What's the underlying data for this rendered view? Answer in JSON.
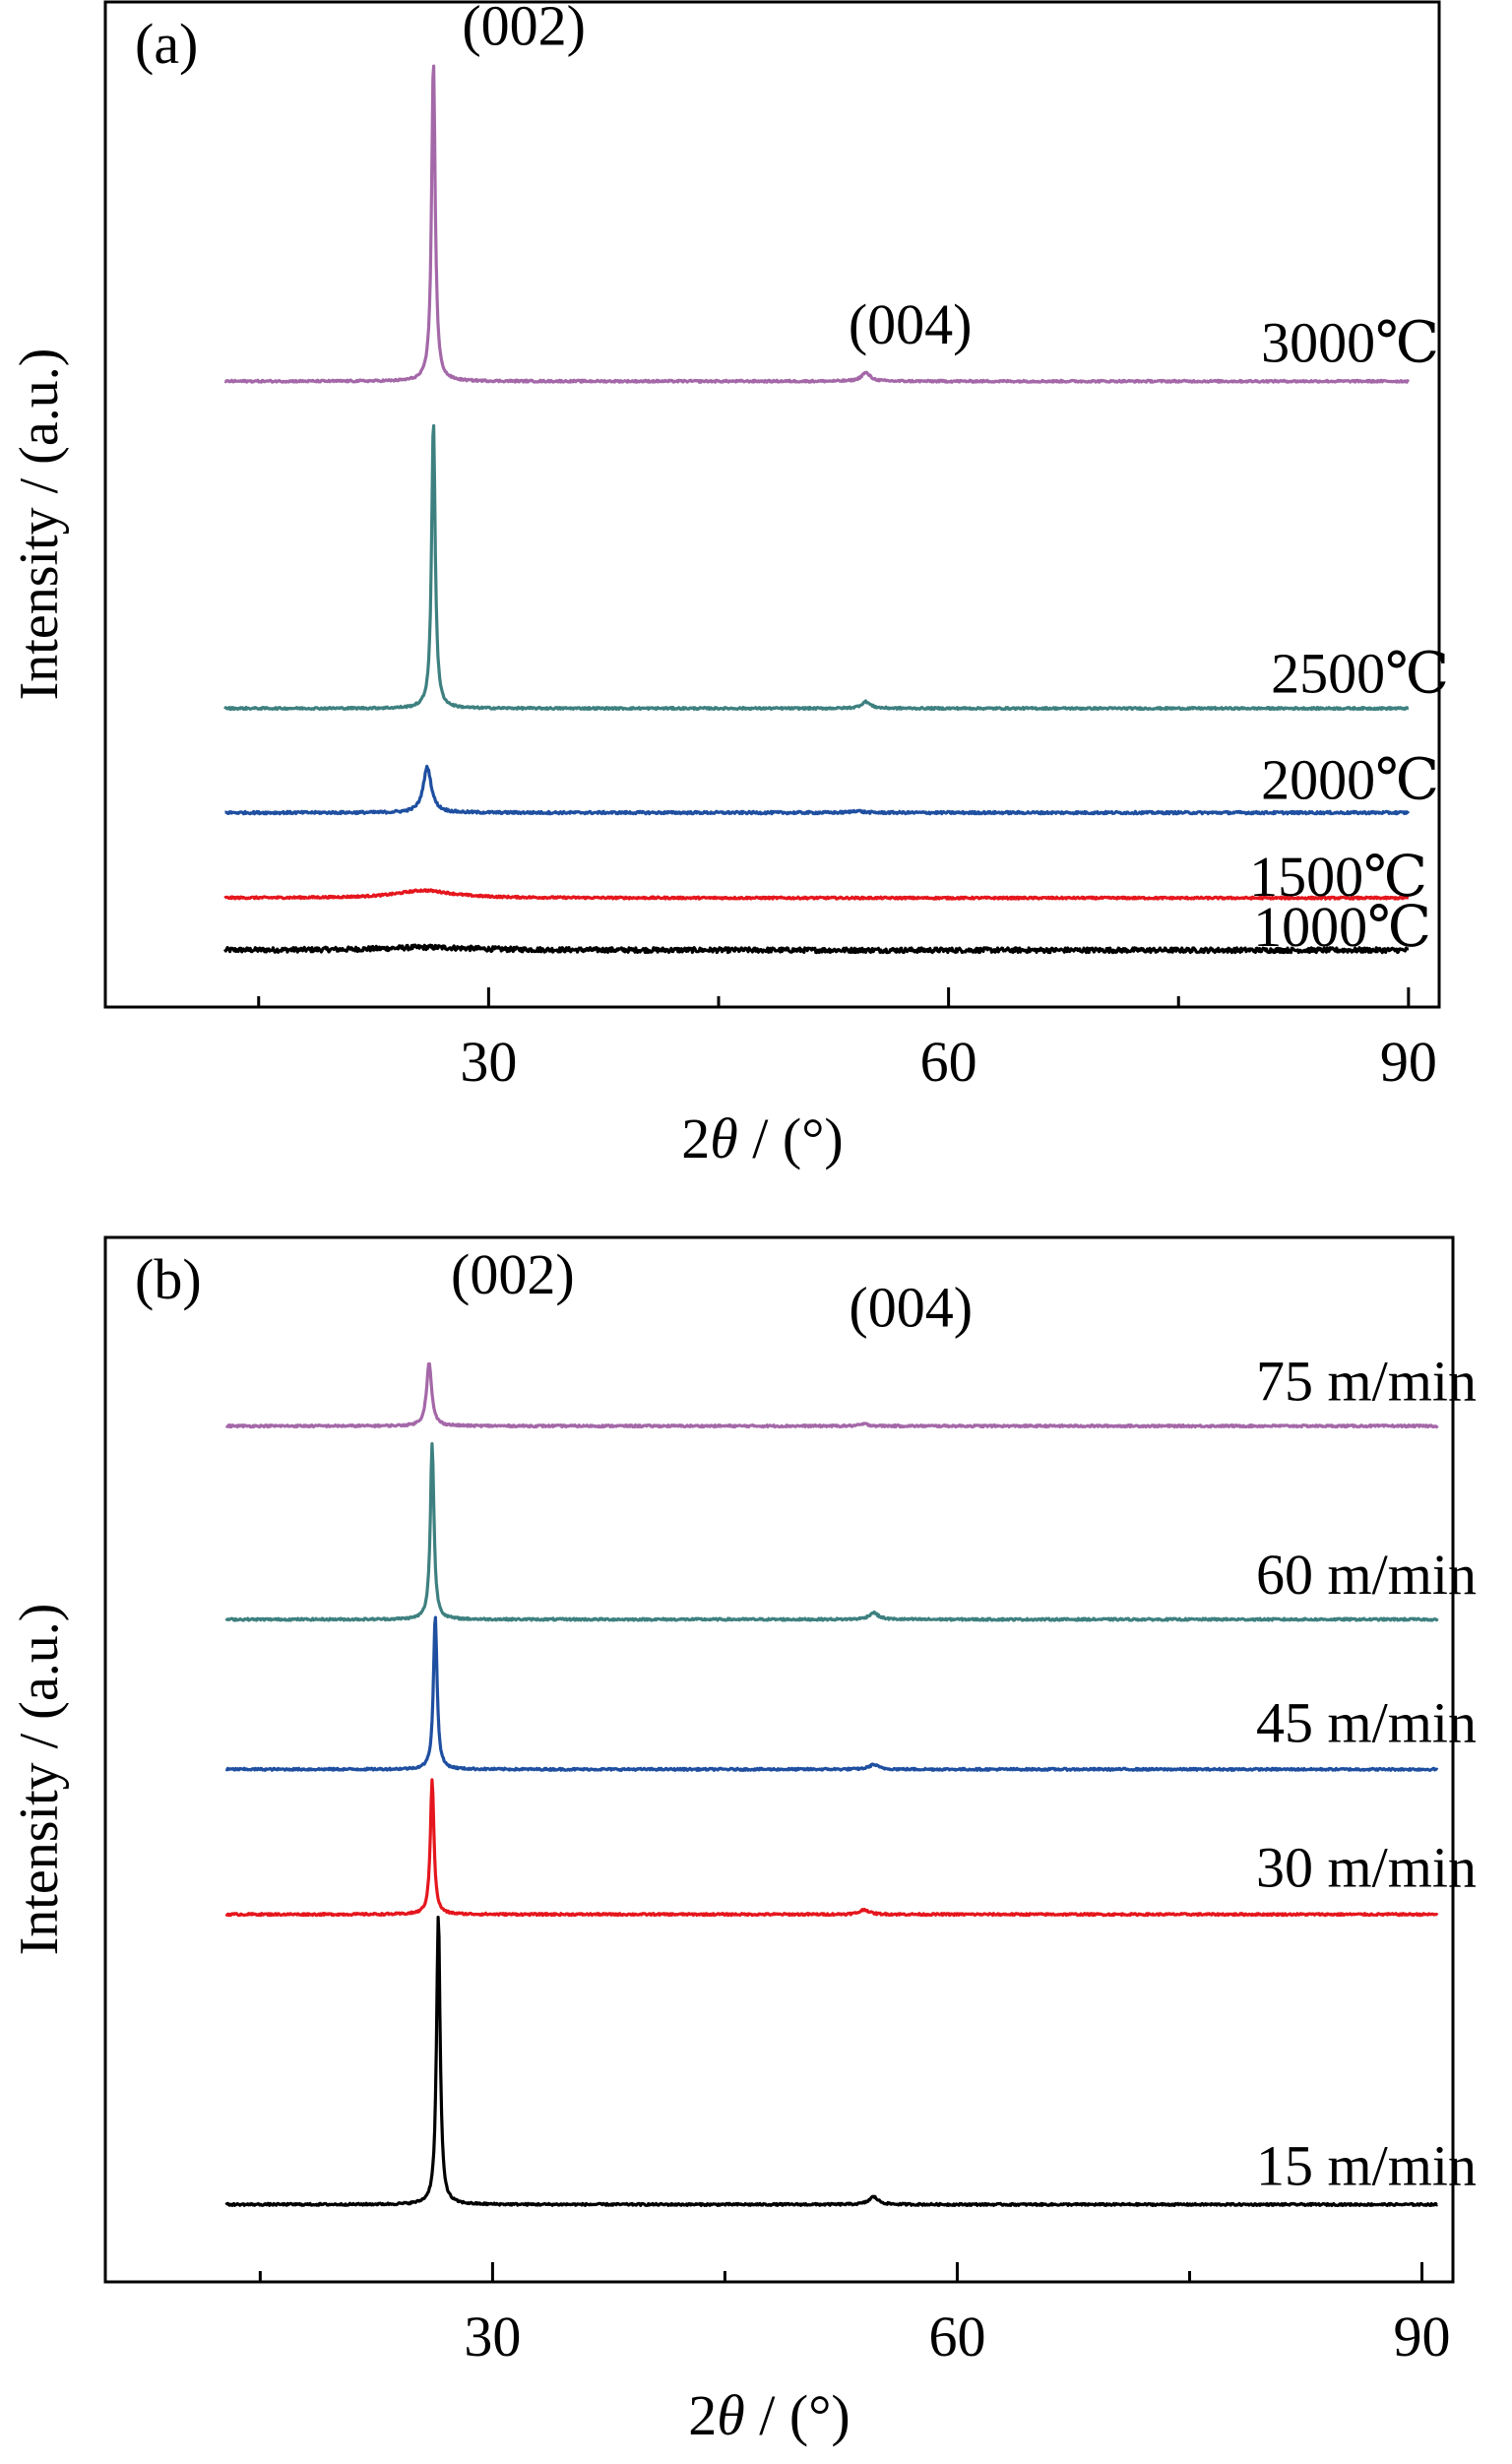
{
  "chart_data": [
    {
      "type": "line",
      "panel_label": "(a)",
      "xlabel_prefix": "2",
      "xlabel_theta": "θ",
      "xlabel_unit": " / (°)",
      "ylabel": "Intensity / (a.u.)",
      "xlim": [
        5,
        92
      ],
      "ylim": [
        -0.6,
        10.0
      ],
      "xticks": [
        30,
        60,
        90
      ],
      "xtick_labels": [
        "30",
        "60",
        "90"
      ],
      "minor_xticks": [
        15,
        45,
        75
      ],
      "annotations": [
        {
          "text": "(002)",
          "x": 32.3,
          "y": 9.55
        },
        {
          "text": "(004)",
          "x": 57.5,
          "y": 6.4
        }
      ],
      "series": [
        {
          "name": "1000℃",
          "color": "#000000",
          "offset": 0.0,
          "peaks": [
            [
              26.0,
              0.03,
              3.5
            ],
            [
              54.0,
              0.0,
              1.0
            ]
          ],
          "noise": 0.05
        },
        {
          "name": "1500℃",
          "color": "#e5161d",
          "offset": 0.55,
          "peaks": [
            [
              25.8,
              0.08,
              2.2
            ],
            [
              54.0,
              0.0,
              1.0
            ]
          ],
          "noise": 0.02
        },
        {
          "name": "2000℃",
          "color": "#1f4fa0",
          "offset": 1.45,
          "peaks": [
            [
              26.0,
              0.48,
              0.32
            ],
            [
              54.0,
              0.02,
              0.4
            ]
          ],
          "noise": 0.025
        },
        {
          "name": "2500℃",
          "color": "#3e8080",
          "offset": 2.55,
          "peaks": [
            [
              26.4,
              3.05,
              0.14
            ],
            [
              54.6,
              0.07,
              0.35
            ]
          ],
          "noise": 0.02
        },
        {
          "name": "3000℃",
          "color": "#a468a8",
          "offset": 6.0,
          "peaks": [
            [
              26.4,
              3.4,
              0.14
            ],
            [
              54.6,
              0.09,
              0.35
            ]
          ],
          "noise": 0.02
        }
      ]
    },
    {
      "type": "line",
      "panel_label": "(b)",
      "xlabel_prefix": "2",
      "xlabel_theta": "θ",
      "xlabel_unit": " / (°)",
      "ylabel": "Intensity / (a.u.)",
      "xlim": [
        5,
        92
      ],
      "ylim": [
        -0.8,
        10.0
      ],
      "xticks": [
        30,
        60,
        90
      ],
      "xtick_labels": [
        "30",
        "60",
        "90"
      ],
      "minor_xticks": [
        15,
        45,
        75
      ],
      "annotations": [
        {
          "text": "(002)",
          "x": 31.3,
          "y": 9.42
        },
        {
          "text": "(004)",
          "x": 57.0,
          "y": 9.08
        }
      ],
      "series": [
        {
          "name": "15 m/min",
          "color": "#000000",
          "offset": 0.0,
          "peaks": [
            [
              26.5,
              3.0,
              0.14
            ],
            [
              54.6,
              0.08,
              0.35
            ]
          ],
          "noise": 0.02
        },
        {
          "name": "30 m/min",
          "color": "#e5161d",
          "offset": 3.0,
          "peaks": [
            [
              26.1,
              1.4,
              0.14
            ],
            [
              54.0,
              0.05,
              0.35
            ]
          ],
          "noise": 0.02
        },
        {
          "name": "45 m/min",
          "color": "#1f4fa0",
          "offset": 4.5,
          "peaks": [
            [
              26.3,
              1.6,
              0.14
            ],
            [
              54.6,
              0.05,
              0.35
            ]
          ],
          "noise": 0.02
        },
        {
          "name": "60 m/min",
          "color": "#3e8080",
          "offset": 6.05,
          "peaks": [
            [
              26.1,
              1.82,
              0.14
            ],
            [
              54.6,
              0.07,
              0.35
            ]
          ],
          "noise": 0.02
        },
        {
          "name": "75 m/min",
          "color": "#a468a8",
          "offset": 8.05,
          "peaks": [
            [
              25.9,
              0.65,
              0.2
            ],
            [
              54.0,
              0.02,
              0.35
            ]
          ],
          "noise": 0.02
        }
      ]
    }
  ]
}
